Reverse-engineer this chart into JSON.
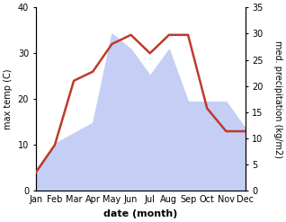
{
  "months": [
    "Jan",
    "Feb",
    "Mar",
    "Apr",
    "May",
    "Jun",
    "Jul",
    "Aug",
    "Sep",
    "Oct",
    "Nov",
    "Dec"
  ],
  "max_temp": [
    4.0,
    10.0,
    24.0,
    26.0,
    32.0,
    34.0,
    30.0,
    34.0,
    34.0,
    18.0,
    13.0,
    13.0
  ],
  "precipitation": [
    4.0,
    9.0,
    11.0,
    13.0,
    30.0,
    27.0,
    22.0,
    27.0,
    17.0,
    17.0,
    17.0,
    12.0
  ],
  "temp_color": "#c0392b",
  "precip_fill_color": "#c5cff5",
  "temp_ylim": [
    0,
    40
  ],
  "precip_ylim": [
    0,
    35
  ],
  "temp_yticks": [
    0,
    10,
    20,
    30,
    40
  ],
  "precip_yticks": [
    0,
    5,
    10,
    15,
    20,
    25,
    30,
    35
  ],
  "xlabel": "date (month)",
  "ylabel_left": "max temp (C)",
  "ylabel_right": "med. precipitation (kg/m2)",
  "background_color": "#ffffff",
  "temp_linewidth": 1.8,
  "tick_fontsize": 7,
  "xlabel_fontsize": 8,
  "ylabel_fontsize": 7
}
